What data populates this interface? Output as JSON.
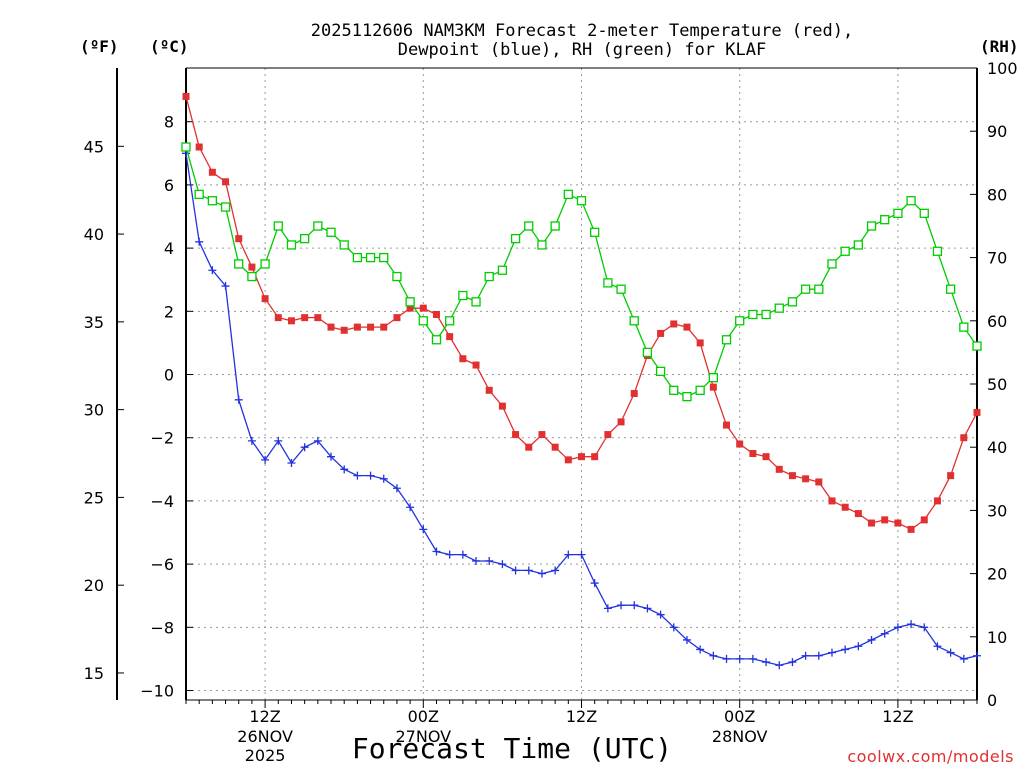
{
  "colors": {
    "temperature": "#e03030",
    "dewpoint": "#2233dd",
    "rh": "#00cc00",
    "grid": "#9a9a9a",
    "credit": "#e03030"
  },
  "chart_data": {
    "type": "line",
    "title_line1": "2025112606 NAM3KM Forecast 2-meter Temperature (red),",
    "title_line2": "Dewpoint (blue), RH (green) for KLAF",
    "xlabel": "Forecast Time (UTC)",
    "credit": "coolwx.com/models",
    "unit_f": "(ºF)",
    "unit_c": "(ºC)",
    "unit_rh": "(RH)",
    "x_range_hours": [
      0,
      60
    ],
    "x_interval_hours": 1,
    "x_ticks": [
      {
        "hour": 6,
        "label": "12Z",
        "sub": "26NOV",
        "sub2": "2025"
      },
      {
        "hour": 18,
        "label": "00Z",
        "sub": "27NOV",
        "sub2": ""
      },
      {
        "hour": 30,
        "label": "12Z",
        "sub": "",
        "sub2": ""
      },
      {
        "hour": 42,
        "label": "00Z",
        "sub": "28NOV",
        "sub2": ""
      },
      {
        "hour": 54,
        "label": "12Z",
        "sub": "",
        "sub2": ""
      }
    ],
    "y_left_c": {
      "min": -10.3,
      "max": 9.7,
      "ticks": [
        -10,
        -8,
        -6,
        -4,
        -2,
        0,
        2,
        4,
        6,
        8
      ]
    },
    "y_left_f": {
      "ticks": [
        15,
        20,
        25,
        30,
        35,
        40,
        45
      ]
    },
    "y_right_rh": {
      "min": 0,
      "max": 100,
      "ticks": [
        0,
        10,
        20,
        30,
        40,
        50,
        60,
        70,
        80,
        90,
        100
      ]
    },
    "series": [
      {
        "name": "Temperature",
        "unit": "C",
        "marker": "filled-square",
        "values": [
          8.8,
          7.2,
          6.4,
          6.1,
          4.3,
          3.4,
          2.4,
          1.8,
          1.7,
          1.8,
          1.8,
          1.5,
          1.4,
          1.5,
          1.5,
          1.5,
          1.8,
          2.1,
          2.1,
          1.9,
          1.2,
          0.5,
          0.3,
          -0.5,
          -1.0,
          -1.9,
          -2.3,
          -1.9,
          -2.3,
          -2.7,
          -2.6,
          -2.6,
          -1.9,
          -1.5,
          -0.6,
          0.6,
          1.3,
          1.6,
          1.5,
          1.0,
          -0.4,
          -1.6,
          -2.2,
          -2.5,
          -2.6,
          -3.0,
          -3.2,
          -3.3,
          -3.4,
          -4.0,
          -4.2,
          -4.4,
          -4.7,
          -4.6,
          -4.7,
          -4.9,
          -4.6,
          -4.0,
          -3.2,
          -2.0,
          -1.2
        ]
      },
      {
        "name": "Dewpoint",
        "unit": "C",
        "marker": "plus",
        "values": [
          7.0,
          4.2,
          3.3,
          2.8,
          -0.8,
          -2.1,
          -2.7,
          -2.1,
          -2.8,
          -2.3,
          -2.1,
          -2.6,
          -3.0,
          -3.2,
          -3.2,
          -3.3,
          -3.6,
          -4.2,
          -4.9,
          -5.6,
          -5.7,
          -5.7,
          -5.9,
          -5.9,
          -6.0,
          -6.2,
          -6.2,
          -6.3,
          -6.2,
          -5.7,
          -5.7,
          -6.6,
          -7.4,
          -7.3,
          -7.3,
          -7.4,
          -7.6,
          -8.0,
          -8.4,
          -8.7,
          -8.9,
          -9.0,
          -9.0,
          -9.0,
          -9.1,
          -9.2,
          -9.1,
          -8.9,
          -8.9,
          -8.8,
          -8.7,
          -8.6,
          -8.4,
          -8.2,
          -8.0,
          -7.9,
          -8.0,
          -8.6,
          -8.8,
          -9.0,
          -8.9
        ]
      },
      {
        "name": "RH",
        "unit": "%",
        "marker": "open-square",
        "values": [
          87.5,
          80,
          79,
          78,
          69,
          67,
          69,
          75,
          72,
          73,
          75,
          74,
          72,
          70,
          70,
          70,
          67,
          63,
          60,
          57,
          60,
          64,
          63,
          67,
          68,
          73,
          75,
          72,
          75,
          80,
          79,
          74,
          66,
          65,
          60,
          55,
          52,
          49,
          48,
          49,
          51,
          57,
          60,
          61,
          61,
          62,
          63,
          65,
          65,
          69,
          71,
          72,
          75,
          76,
          77,
          79,
          77,
          71,
          65,
          59,
          56
        ]
      }
    ]
  }
}
